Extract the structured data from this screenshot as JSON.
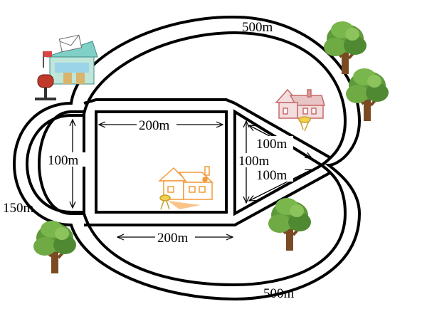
{
  "labels": {
    "top_arc": "500m",
    "bottom_arc": "500m",
    "left_semicircle": "150m",
    "semicircle_diameter": "100m",
    "rectangle_top": "200m",
    "rectangle_bottom": "200m",
    "triangle_vertical": "100m",
    "triangle_upper_side": "100m",
    "triangle_lower_side": "100m"
  },
  "icons": {
    "post_office": "post-office-icon",
    "house_pink": "house-pink-icon",
    "house_orange": "house-orange-icon",
    "tree": "tree-icon"
  },
  "colors": {
    "road": "#000000",
    "house_pink": "#c86a6a",
    "house_orange": "#f39a3a",
    "tree_leaf": "#5f9a3a",
    "tree_trunk": "#7a4b22",
    "post_office_roof": "#7fd1c8"
  }
}
